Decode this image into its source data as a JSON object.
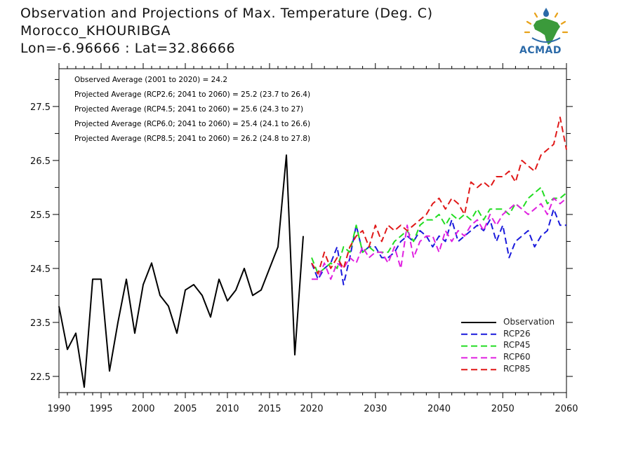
{
  "header": {
    "title": "Observation and Projections of Max. Temperature (Deg. C)",
    "location": "Morocco_KHOURIBGA",
    "coords": "Lon=-6.96666 : Lat=32.86666"
  },
  "stats": [
    "Observed Average (2001 to 2020) = 24.2",
    "Projected Average (RCP2.6; 2041 to 2060) = 25.2 (23.7 to 26.4)",
    "Projected Average (RCP4.5; 2041 to 2060) = 25.6 (24.3 to 27)",
    "Projected Average (RCP6.0; 2041 to 2060) = 25.4 (24.1 to 26.6)",
    "Projected Average (RCP8.5; 2041 to 2060) = 26.2 (24.8 to 27.8)"
  ],
  "logo": {
    "text": "ACMAD"
  },
  "chart_data": {
    "type": "line",
    "xlim": [
      1990,
      2060
    ],
    "ylim": [
      22.2,
      28.2
    ],
    "yticks": [
      22.5,
      23.5,
      24.5,
      25.5,
      26.5,
      27.5
    ],
    "ytick_labels": [
      "22.5",
      "23.5",
      "24.5",
      "25.5",
      "26.5",
      "27.5"
    ],
    "xticks_left": [
      1990,
      1995,
      2000,
      2005,
      2010,
      2015,
      2020
    ],
    "xticks_right": [
      2030,
      2040,
      2050,
      2060
    ],
    "legend_position": "bottom-right",
    "series": [
      {
        "name": "Observation",
        "color": "#000000",
        "dashed": false,
        "x": [
          1990,
          1991,
          1992,
          1993,
          1994,
          1995,
          1996,
          1997,
          1998,
          1999,
          2000,
          2001,
          2002,
          2003,
          2004,
          2005,
          2006,
          2007,
          2008,
          2009,
          2010,
          2011,
          2012,
          2013,
          2014,
          2015,
          2016,
          2017,
          2018,
          2019,
          2020
        ],
        "y": [
          23.8,
          23.0,
          23.3,
          22.3,
          24.3,
          24.3,
          22.6,
          23.5,
          24.3,
          23.3,
          24.2,
          24.6,
          24.0,
          23.8,
          23.3,
          24.1,
          24.2,
          24.0,
          23.6,
          24.3,
          23.9,
          24.1,
          24.5,
          24.0,
          24.1,
          24.5,
          24.9,
          26.6,
          22.9,
          25.1,
          null
        ]
      },
      {
        "name": "RCP26",
        "color": "#1a1adc",
        "dashed": true,
        "x": [
          2020,
          2021,
          2022,
          2023,
          2024,
          2025,
          2026,
          2027,
          2028,
          2029,
          2030,
          2031,
          2032,
          2033,
          2034,
          2035,
          2036,
          2037,
          2038,
          2039,
          2040,
          2041,
          2042,
          2043,
          2044,
          2045,
          2046,
          2047,
          2048,
          2049,
          2050,
          2051,
          2052,
          2053,
          2054,
          2055,
          2056,
          2057,
          2058,
          2059,
          2060
        ],
        "y": [
          24.6,
          24.3,
          24.5,
          24.6,
          24.9,
          24.2,
          24.7,
          25.3,
          24.8,
          24.9,
          24.9,
          24.7,
          24.7,
          24.8,
          25.0,
          25.1,
          25.0,
          25.2,
          25.1,
          24.9,
          25.1,
          25.0,
          25.4,
          25.0,
          25.1,
          25.2,
          25.3,
          25.2,
          25.4,
          25.0,
          25.3,
          24.7,
          25.0,
          25.1,
          25.2,
          24.9,
          25.1,
          25.2,
          25.6,
          25.3,
          25.3
        ]
      },
      {
        "name": "RCP45",
        "color": "#22dd22",
        "dashed": true,
        "x": [
          2020,
          2021,
          2022,
          2023,
          2024,
          2025,
          2026,
          2027,
          2028,
          2029,
          2030,
          2031,
          2032,
          2033,
          2034,
          2035,
          2036,
          2037,
          2038,
          2039,
          2040,
          2041,
          2042,
          2043,
          2044,
          2045,
          2046,
          2047,
          2048,
          2049,
          2050,
          2051,
          2052,
          2053,
          2054,
          2055,
          2056,
          2057,
          2058,
          2059,
          2060
        ],
        "y": [
          24.7,
          24.4,
          24.5,
          24.6,
          24.5,
          24.9,
          24.8,
          25.3,
          24.8,
          24.9,
          24.8,
          24.8,
          24.8,
          25.0,
          25.1,
          25.2,
          25.0,
          25.3,
          25.4,
          25.4,
          25.5,
          25.3,
          25.5,
          25.4,
          25.5,
          25.4,
          25.6,
          25.4,
          25.6,
          25.6,
          25.6,
          25.5,
          25.7,
          25.6,
          25.8,
          25.9,
          26.0,
          25.7,
          25.8,
          25.8,
          25.9
        ]
      },
      {
        "name": "RCP60",
        "color": "#e020e0",
        "dashed": true,
        "x": [
          2020,
          2021,
          2022,
          2023,
          2024,
          2025,
          2026,
          2027,
          2028,
          2029,
          2030,
          2031,
          2032,
          2033,
          2034,
          2035,
          2036,
          2037,
          2038,
          2039,
          2040,
          2041,
          2042,
          2043,
          2044,
          2045,
          2046,
          2047,
          2048,
          2049,
          2050,
          2051,
          2052,
          2053,
          2054,
          2055,
          2056,
          2057,
          2058,
          2059,
          2060
        ],
        "y": [
          24.3,
          24.3,
          24.6,
          24.3,
          24.6,
          24.5,
          24.7,
          24.6,
          24.9,
          24.7,
          24.8,
          24.8,
          24.6,
          24.9,
          24.5,
          25.3,
          24.7,
          25.0,
          25.1,
          25.1,
          24.8,
          25.2,
          25.0,
          25.2,
          25.1,
          25.3,
          25.4,
          25.2,
          25.5,
          25.3,
          25.5,
          25.6,
          25.7,
          25.6,
          25.5,
          25.6,
          25.7,
          25.5,
          25.8,
          25.7,
          25.8
        ]
      },
      {
        "name": "RCP85",
        "color": "#e01818",
        "dashed": true,
        "x": [
          2020,
          2021,
          2022,
          2023,
          2024,
          2025,
          2026,
          2027,
          2028,
          2029,
          2030,
          2031,
          2032,
          2033,
          2034,
          2035,
          2036,
          2037,
          2038,
          2039,
          2040,
          2041,
          2042,
          2043,
          2044,
          2045,
          2046,
          2047,
          2048,
          2049,
          2050,
          2051,
          2052,
          2053,
          2054,
          2055,
          2056,
          2057,
          2058,
          2059,
          2060
        ],
        "y": [
          24.6,
          24.4,
          24.8,
          24.5,
          24.7,
          24.5,
          24.9,
          25.1,
          25.2,
          24.9,
          25.3,
          25.0,
          25.3,
          25.2,
          25.3,
          25.2,
          25.3,
          25.4,
          25.5,
          25.7,
          25.8,
          25.6,
          25.8,
          25.7,
          25.5,
          26.1,
          26.0,
          26.1,
          26.0,
          26.2,
          26.2,
          26.3,
          26.1,
          26.5,
          26.4,
          26.3,
          26.6,
          26.7,
          26.8,
          27.3,
          26.7
        ]
      }
    ]
  }
}
